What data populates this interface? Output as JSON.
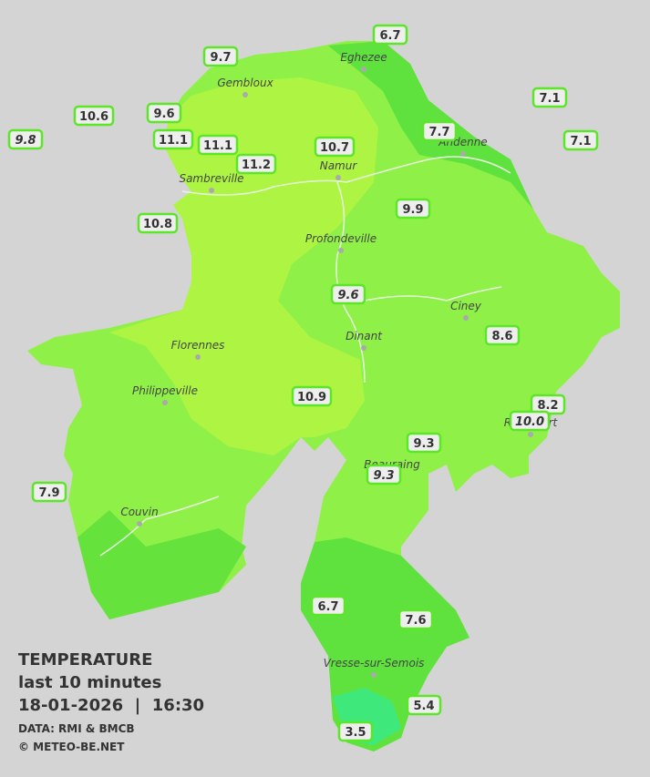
{
  "stations": [
    "6.7",
    "9.7",
    "7.1",
    "10.6",
    "9.6",
    "9.8",
    "11.1",
    "11.1",
    "7.7",
    "7.1",
    "10.7",
    "11.2",
    "9.9",
    "10.8",
    "9.6",
    "8.6",
    "10.9",
    "8.2",
    "10.0",
    "9.3",
    "9.3",
    "7.9",
    "6.7",
    "7.6",
    "5.4",
    "3.5"
  ],
  "towns": [
    "Eghezee",
    "Gembloux",
    "Andenne",
    "Namur",
    "Sambreville",
    "Profondeville",
    "Ciney",
    "Dinant",
    "Florennes",
    "Philippeville",
    "Beauraing",
    "Rochefort",
    "Couvin",
    "Vresse-sur-Semois"
  ],
  "legend": {
    "title": "TEMPERATURE",
    "subtitle": "last 10 minutes",
    "datetime": "18-01-2026  |  16:30",
    "source": "DATA: RMI & BMCB",
    "copyright": "© METEO-BE.NET"
  }
}
